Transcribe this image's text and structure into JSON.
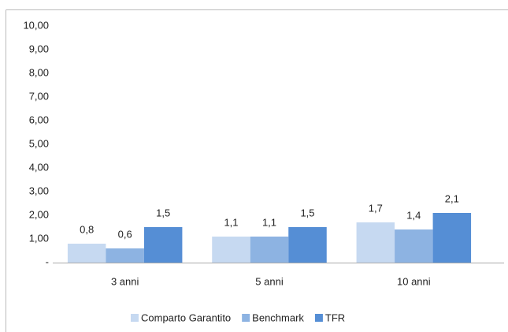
{
  "chart_data": {
    "type": "bar",
    "categories": [
      "3 anni",
      "5 anni",
      "10 anni"
    ],
    "series": [
      {
        "name": "Comparto Garantito",
        "color": "#c6d9f1",
        "values": [
          0.8,
          1.1,
          1.7
        ],
        "value_labels": [
          "0,8",
          "1,1",
          "1,7"
        ]
      },
      {
        "name": "Benchmark",
        "color": "#8db3e2",
        "values": [
          0.6,
          1.1,
          1.4
        ],
        "value_labels": [
          "0,6",
          "1,1",
          "1,4"
        ]
      },
      {
        "name": "TFR",
        "color": "#558ed5",
        "values": [
          1.5,
          1.5,
          2.1
        ],
        "value_labels": [
          "1,5",
          "1,5",
          "2,1"
        ]
      }
    ],
    "ylim": [
      0,
      10
    ],
    "yticks": [
      {
        "value": 0,
        "label": "-"
      },
      {
        "value": 1,
        "label": "1,00"
      },
      {
        "value": 2,
        "label": "2,00"
      },
      {
        "value": 3,
        "label": "3,00"
      },
      {
        "value": 4,
        "label": "4,00"
      },
      {
        "value": 5,
        "label": "5,00"
      },
      {
        "value": 6,
        "label": "6,00"
      },
      {
        "value": 7,
        "label": "7,00"
      },
      {
        "value": 8,
        "label": "8,00"
      },
      {
        "value": 9,
        "label": "9,00"
      },
      {
        "value": 10,
        "label": "10,00"
      }
    ],
    "grid": false,
    "legend": "bottom"
  }
}
